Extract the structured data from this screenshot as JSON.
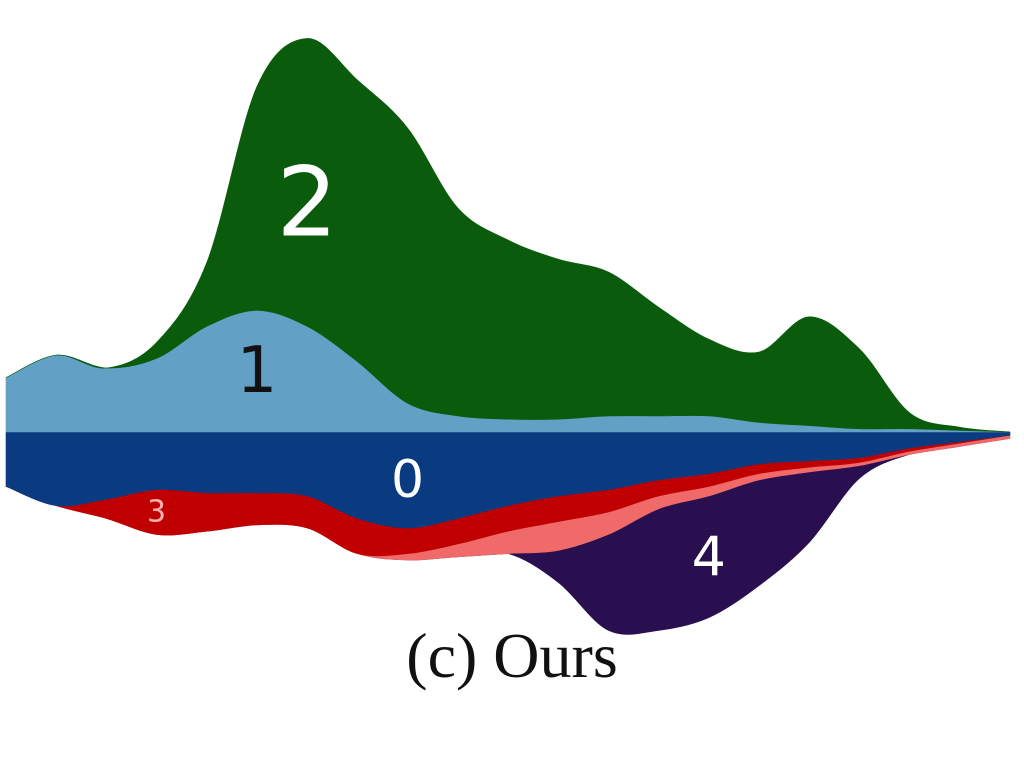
{
  "caption": "(c) Ours",
  "chart_data": {
    "type": "area",
    "subtype": "streamgraph",
    "title": "",
    "xlabel": "",
    "ylabel": "",
    "axes_visible": false,
    "grid": false,
    "legend": "none",
    "x": [
      0,
      1,
      2,
      3,
      4,
      5,
      6,
      7,
      8,
      9,
      10,
      11,
      12,
      13,
      14,
      15,
      16,
      17,
      18,
      19,
      20
    ],
    "series": [
      {
        "name": "0",
        "color": "#0a3a80",
        "values": [
          1.7,
          2.3,
          2.1,
          1.8,
          1.9,
          1.9,
          2.0,
          2.7,
          3.0,
          2.7,
          2.3,
          2.0,
          1.8,
          1.5,
          1.3,
          1.0,
          0.9,
          0.8,
          0.5,
          0.3,
          0.1
        ]
      },
      {
        "name": "1",
        "color": "#62a0c6",
        "values": [
          1.7,
          2.4,
          2.0,
          2.3,
          3.3,
          3.8,
          3.3,
          2.2,
          0.9,
          0.5,
          0.4,
          0.4,
          0.5,
          0.5,
          0.5,
          0.3,
          0.2,
          0.1,
          0.1,
          0.05,
          0.0
        ]
      },
      {
        "name": "2",
        "color": "#0a5c0c",
        "values": [
          0.0,
          0.0,
          0.0,
          0.5,
          2.0,
          7.0,
          9.0,
          8.8,
          8.6,
          6.5,
          5.6,
          5.0,
          4.5,
          3.4,
          2.4,
          2.2,
          3.4,
          2.5,
          0.5,
          0.1,
          0.0
        ]
      },
      {
        "name": "3",
        "color": "#c00000",
        "values": [
          0.0,
          0.0,
          0.6,
          1.4,
          1.2,
          1.0,
          1.0,
          1.1,
          0.8,
          0.8,
          0.8,
          0.8,
          0.7,
          0.5,
          0.4,
          0.3,
          0.2,
          0.15,
          0.1,
          0.05,
          0.0
        ]
      },
      {
        "name": "",
        "color": "#f06a6a",
        "values": [
          0.0,
          0.0,
          0.0,
          0.0,
          0.0,
          0.0,
          0.0,
          0.0,
          0.2,
          0.4,
          0.7,
          0.9,
          0.7,
          0.4,
          0.3,
          0.2,
          0.15,
          0.1,
          0.1,
          0.1,
          0.1
        ]
      },
      {
        "name": "4",
        "color": "#2a0f50",
        "values": [
          0.0,
          0.0,
          0.0,
          0.0,
          0.0,
          0.0,
          0.0,
          0.0,
          0.0,
          0.0,
          0.0,
          1.0,
          3.0,
          3.8,
          3.8,
          3.3,
          2.2,
          0.4,
          0.0,
          0.0,
          0.0
        ]
      }
    ],
    "stack_order_top_to_bottom": [
      "2",
      "1",
      "0",
      "3",
      "",
      "4"
    ],
    "labels": [
      {
        "series": "2",
        "text": "2",
        "color": "#ffffff"
      },
      {
        "series": "1",
        "text": "1",
        "color": "#111111"
      },
      {
        "series": "0",
        "text": "0",
        "color": "#ffffff"
      },
      {
        "series": "3",
        "text": "3",
        "color": "#ffb0b0"
      },
      {
        "series": "4",
        "text": "4",
        "color": "#ffffff"
      }
    ]
  }
}
